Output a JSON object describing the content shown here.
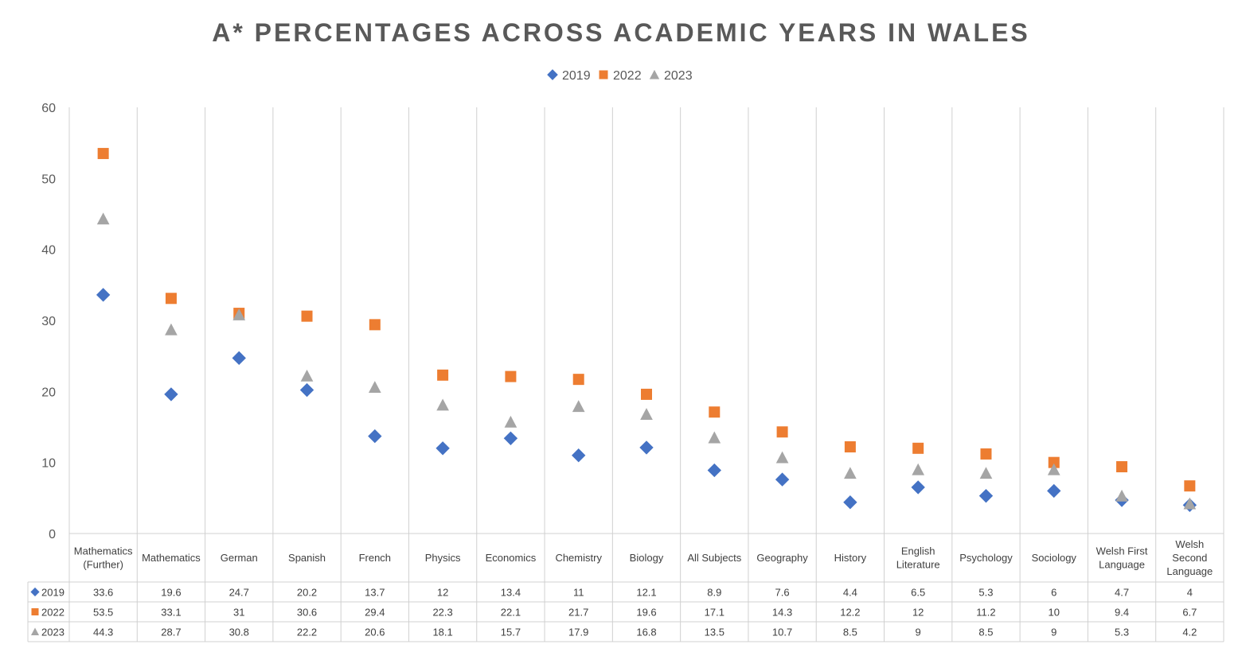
{
  "chart_data": {
    "type": "scatter",
    "title": "A* PERCENTAGES ACROSS ACADEMIC YEARS IN WALES",
    "categories": [
      [
        "Mathematics",
        "(Further)"
      ],
      [
        "Mathematics"
      ],
      [
        "German"
      ],
      [
        "Spanish"
      ],
      [
        "French"
      ],
      [
        "Physics"
      ],
      [
        "Economics"
      ],
      [
        "Chemistry"
      ],
      [
        "Biology"
      ],
      [
        "All Subjects"
      ],
      [
        "Geography"
      ],
      [
        "History"
      ],
      [
        "English",
        "Literature"
      ],
      [
        "Psychology"
      ],
      [
        "Sociology"
      ],
      [
        "Welsh First",
        "Language"
      ],
      [
        "Welsh",
        "Second",
        "Language"
      ]
    ],
    "series": [
      {
        "name": "2019",
        "marker": "diamond",
        "color": "#4472C4",
        "values": [
          33.6,
          19.6,
          24.7,
          20.2,
          13.7,
          12,
          13.4,
          11,
          12.1,
          8.9,
          7.6,
          4.4,
          6.5,
          5.3,
          6,
          4.7,
          4
        ]
      },
      {
        "name": "2022",
        "marker": "square",
        "color": "#ED7D31",
        "values": [
          53.5,
          33.1,
          31,
          30.6,
          29.4,
          22.3,
          22.1,
          21.7,
          19.6,
          17.1,
          14.3,
          12.2,
          12,
          11.2,
          10,
          9.4,
          6.7
        ]
      },
      {
        "name": "2023",
        "marker": "triangle",
        "color": "#A5A5A5",
        "values": [
          44.3,
          28.7,
          30.8,
          22.2,
          20.6,
          18.1,
          15.7,
          17.9,
          16.8,
          13.5,
          10.7,
          8.5,
          9,
          8.5,
          9,
          5.3,
          4.2
        ]
      }
    ],
    "yticks": [
      "0",
      "10",
      "20",
      "30",
      "40",
      "50",
      "60"
    ],
    "ylim": [
      0,
      60
    ],
    "grid": "vertical-category-lines",
    "legend": "top-center",
    "data_table": true
  }
}
